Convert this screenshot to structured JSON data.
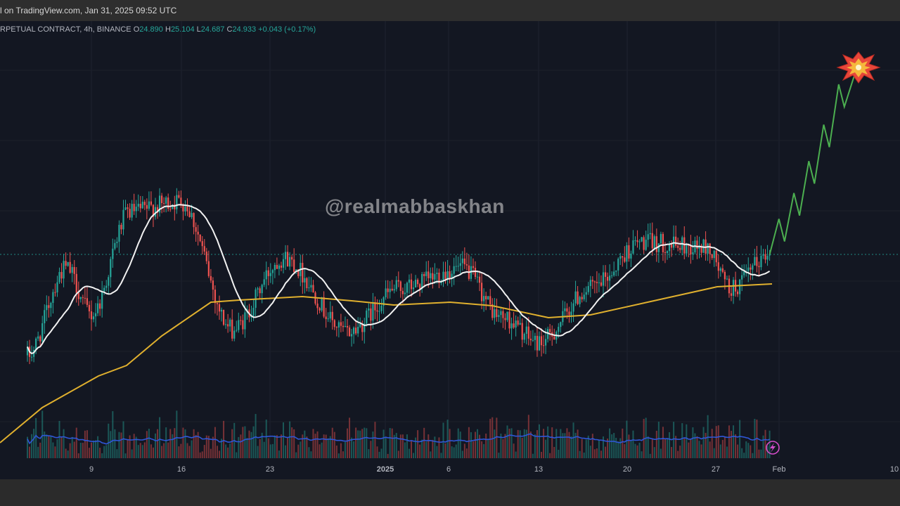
{
  "header": {
    "snapshot_text": "l on TradingView.com, Jan 31, 2025 09:52 UTC"
  },
  "legend": {
    "symbol": "RPETUAL CONTRACT, 4h, BINANCE",
    "open_label": "O",
    "open": "24.890",
    "high_label": "H",
    "high": "25.104",
    "low_label": "L",
    "low": "24.687",
    "close_label": "C",
    "close": "24.933",
    "change": "+0.043 (+0.17%)"
  },
  "watermark": "@realmabbaskhan",
  "colors": {
    "background": "#131722",
    "up": "#26a69a",
    "down": "#ef5350",
    "fast_ma": "#f2f2f2",
    "slow_ma": "#e0b02e",
    "volume_ma": "#2f56d6",
    "projection": "#4caf50",
    "current_price_line": "#26a69a"
  },
  "icons": [
    "explosion-icon",
    "lightning-icon"
  ],
  "chart_data": {
    "type": "candlestick",
    "timeframe": "4h",
    "exchange": "BINANCE",
    "x_ticks": [
      "9",
      "16",
      "23",
      "2025",
      "6",
      "13",
      "20",
      "27",
      "Feb",
      "10"
    ],
    "last_ohlc": {
      "open": 24.89,
      "high": 25.104,
      "low": 24.687,
      "close": 24.933,
      "change": 0.043,
      "change_pct": 0.17
    },
    "price_anchors": [
      {
        "date": "Dec 4",
        "price": 21.0
      },
      {
        "date": "Dec 7",
        "price": 24.4
      },
      {
        "date": "Dec 9",
        "price": 22.6
      },
      {
        "date": "Dec 12",
        "price": 26.6
      },
      {
        "date": "Dec 16",
        "price": 27.0
      },
      {
        "date": "Dec 20",
        "price": 22.0
      },
      {
        "date": "Dec 24",
        "price": 24.8
      },
      {
        "date": "Dec 29",
        "price": 21.9
      },
      {
        "date": "Jan 2",
        "price": 23.6
      },
      {
        "date": "Jan 7",
        "price": 24.4
      },
      {
        "date": "Jan 10",
        "price": 22.5
      },
      {
        "date": "Jan 13",
        "price": 21.5
      },
      {
        "date": "Jan 17",
        "price": 23.6
      },
      {
        "date": "Jan 21",
        "price": 25.4
      },
      {
        "date": "Jan 26",
        "price": 25.2
      },
      {
        "date": "Jan 28",
        "price": 23.6
      },
      {
        "date": "Jan 31",
        "price": 24.933
      }
    ],
    "series": [
      {
        "name": "Fast MA",
        "color": "#f2f2f2"
      },
      {
        "name": "Slow MA",
        "color": "#e0b02e"
      },
      {
        "name": "Volume",
        "color": "#2f56d6"
      }
    ],
    "projection": {
      "target_date": "Feb 7",
      "target_price": 32.5
    }
  }
}
